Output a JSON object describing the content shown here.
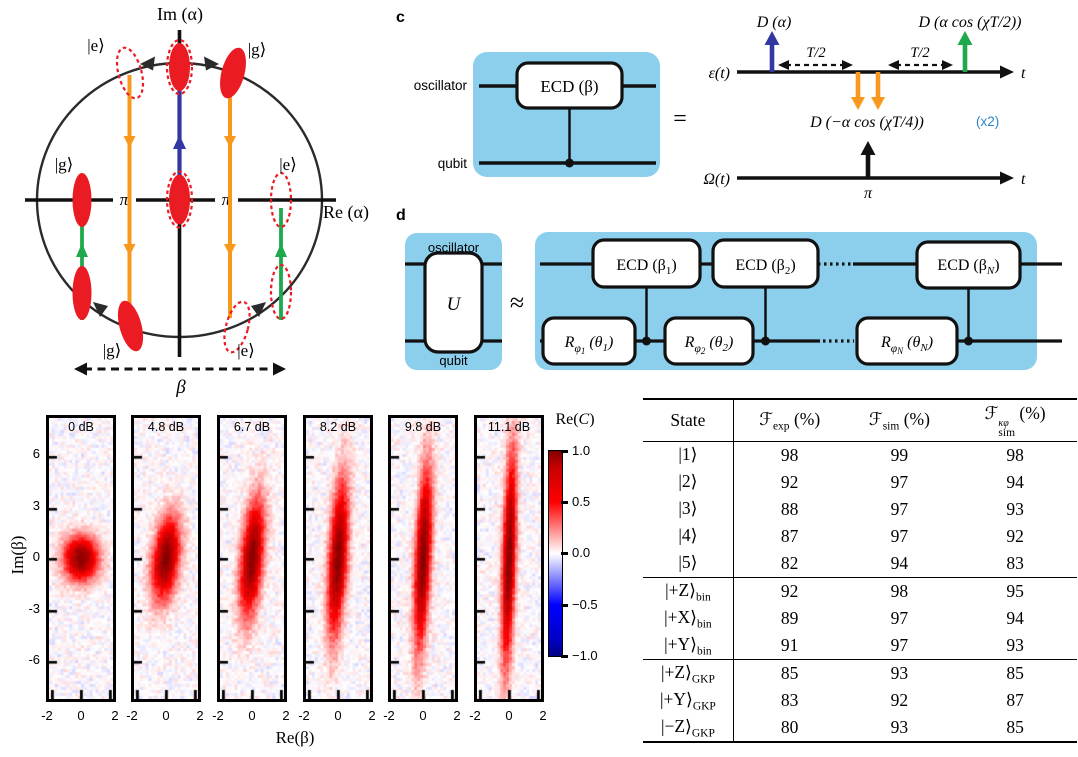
{
  "colors": {
    "box_blue": "#8CCFEC",
    "blob_red": "#EB1B23",
    "orange": "#F8991D",
    "green": "#1EA94D",
    "displacement_blue": "#3237A4",
    "x2_blue": "#2E86C8",
    "line_dark": "#2B2B2B"
  },
  "phase_diagram": {
    "im_axis_label": "Im (α)",
    "re_axis_label": "Re (α)",
    "ket_top_left": "|e⟩",
    "ket_top_right": "|g⟩",
    "ket_mid_left": "|g⟩",
    "ket_mid_right": "|e⟩",
    "ket_bottom_left": "|g⟩",
    "ket_bottom_right": "|e⟩",
    "pi_left": "π",
    "pi_right": "π",
    "beta_label": "β"
  },
  "panel_c": {
    "label": "c",
    "oscillator": "oscillator",
    "qubit": "qubit",
    "gate": "ECD (β)",
    "equals": "=",
    "eps_label": "ε(t)",
    "omega_label": "Ω(t)",
    "t_label_top": "t",
    "t_label_bottom": "t",
    "d_alpha": "D (α)",
    "d_cos_half": "D (α cos (χT/2))",
    "d_cos_quarter": "D (−α cos (χT/4))",
    "x2": "(x2)",
    "t_half_1": "T/2",
    "t_half_2": "T/2",
    "pi_pulse": "π"
  },
  "panel_d": {
    "label": "d",
    "oscillator": "oscillator",
    "qubit": "qubit",
    "u_gate": "U",
    "approx": "≈",
    "ecd_gates": [
      {
        "main": "ECD (β",
        "idx": "1",
        "close": ")"
      },
      {
        "main": "ECD (β",
        "idx": "2",
        "close": ")"
      },
      {
        "main": "ECD (β",
        "idx": "N",
        "close": ")"
      }
    ],
    "r_gates": [
      {
        "r": "R",
        "phi": "φ",
        "phi_idx": "1",
        "theta": " (θ",
        "theta_idx": "1",
        "close": ")"
      },
      {
        "r": "R",
        "phi": "φ",
        "phi_idx": "2",
        "theta": " (θ",
        "theta_idx": "2",
        "close": ")"
      },
      {
        "r": "R",
        "phi": "φ",
        "phi_idx": "N",
        "theta": " (θ",
        "theta_idx": "N",
        "close": ")"
      }
    ]
  },
  "heatmaps": {
    "chart_data": {
      "type": "heatmap",
      "description": "Measured characteristic function Re(C) of squeezed vacuum states at increasing squeezing levels; central Gaussian elongates along Im(beta).",
      "panels": [
        {
          "label": "0 dB",
          "sigma_re": 0.8,
          "sigma_im": 0.9,
          "tilt_deg": 0,
          "peak": 1.0
        },
        {
          "label": "4.8 dB",
          "sigma_re": 0.6,
          "sigma_im": 1.65,
          "tilt_deg": 8,
          "peak": 1.0
        },
        {
          "label": "6.7 dB",
          "sigma_re": 0.5,
          "sigma_im": 2.35,
          "tilt_deg": 6,
          "peak": 1.0
        },
        {
          "label": "8.2 dB",
          "sigma_re": 0.42,
          "sigma_im": 3.05,
          "tilt_deg": 4,
          "peak": 1.0
        },
        {
          "label": "9.8 dB",
          "sigma_re": 0.36,
          "sigma_im": 3.65,
          "tilt_deg": 3,
          "peak": 1.0
        },
        {
          "label": "11.1 dB",
          "sigma_re": 0.3,
          "sigma_im": 4.3,
          "tilt_deg": 2,
          "peak": 1.0
        }
      ],
      "x_ticks": [
        "-2",
        "0",
        "2"
      ],
      "y_ticks": [
        "6",
        "3",
        "0",
        "-3",
        "-6"
      ],
      "x_range": [
        -2.2,
        2.2
      ],
      "y_range": [
        -8.3,
        8.3
      ],
      "xlabel": "Re(β)",
      "ylabel": "Im(β)",
      "noise_amp": 0.09,
      "colorbar": {
        "title_pre": "Re(",
        "title_c": "C",
        "title_post": ")",
        "ticks": [
          "1.0",
          "0.5",
          "0.0",
          "−0.5",
          "−1.0"
        ],
        "cmap": "seismic",
        "range": [
          -1.0,
          1.0
        ]
      }
    }
  },
  "table": {
    "headers": {
      "state": "State",
      "f1": {
        "f": "ℱ",
        "sub": "exp",
        "unit": " (%)"
      },
      "f2": {
        "f": "ℱ",
        "sub": "sim",
        "unit": " (%)"
      },
      "f3": {
        "f": "ℱ",
        "sub": "sim",
        "sup": "κφ",
        "unit": " (%)"
      }
    },
    "rows": [
      {
        "state": "|1⟩",
        "sub": "",
        "v": [
          "98",
          "99",
          "98"
        ]
      },
      {
        "state": "|2⟩",
        "sub": "",
        "v": [
          "92",
          "97",
          "94"
        ]
      },
      {
        "state": "|3⟩",
        "sub": "",
        "v": [
          "88",
          "97",
          "93"
        ]
      },
      {
        "state": "|4⟩",
        "sub": "",
        "v": [
          "87",
          "97",
          "92"
        ]
      },
      {
        "state": "|5⟩",
        "sub": "",
        "v": [
          "82",
          "94",
          "83"
        ]
      },
      {
        "state": "|+Z⟩",
        "sub": "bin",
        "v": [
          "92",
          "98",
          "95"
        ]
      },
      {
        "state": "|+X⟩",
        "sub": "bin",
        "v": [
          "89",
          "97",
          "94"
        ]
      },
      {
        "state": "|+Y⟩",
        "sub": "bin",
        "v": [
          "91",
          "97",
          "93"
        ]
      },
      {
        "state": "|+Z⟩",
        "sub": "GKP",
        "v": [
          "85",
          "93",
          "85"
        ]
      },
      {
        "state": "|+Y⟩",
        "sub": "GKP",
        "v": [
          "83",
          "92",
          "87"
        ]
      },
      {
        "state": "|−Z⟩",
        "sub": "GKP",
        "v": [
          "80",
          "93",
          "85"
        ]
      }
    ]
  }
}
